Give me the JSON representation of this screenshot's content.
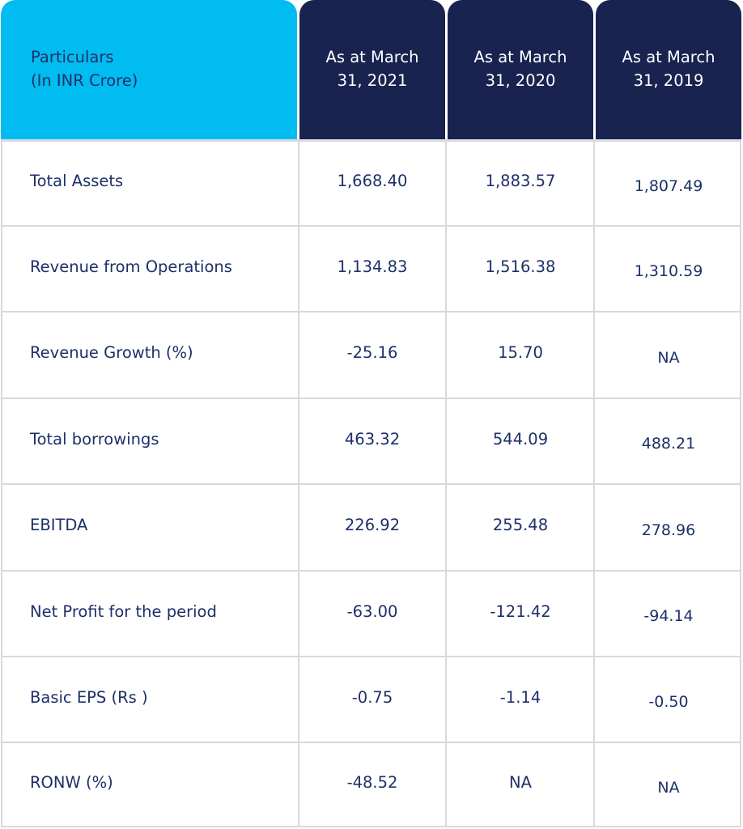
{
  "table": {
    "header": {
      "particulars": [
        "Particulars",
        "(In INR Crore)"
      ],
      "columns": [
        [
          "As at March",
          "31, 2021"
        ],
        [
          "As at March",
          "31, 2020"
        ],
        [
          "As at March",
          "31, 2019"
        ]
      ]
    },
    "rows": [
      {
        "label": "Total Assets",
        "values": [
          "1,668.40",
          "1,883.57",
          "1,807.49"
        ]
      },
      {
        "label": "Revenue from Operations",
        "values": [
          "1,134.83",
          "1,516.38",
          "1,310.59"
        ]
      },
      {
        "label": "Revenue Growth (%)",
        "values": [
          "-25.16",
          "15.70",
          "NA"
        ]
      },
      {
        "label": "Total borrowings",
        "values": [
          "463.32",
          "544.09",
          "488.21"
        ]
      },
      {
        "label": "EBITDA",
        "values": [
          "226.92",
          "255.48",
          "278.96"
        ]
      },
      {
        "label": "Net Profit for the period",
        "values": [
          "-63.00",
          "-121.42",
          "-94.14"
        ]
      },
      {
        "label": "Basic EPS (Rs )",
        "values": [
          "-0.75",
          "-1.14",
          "-0.50"
        ]
      },
      {
        "label": "RONW (%)",
        "values": [
          "-48.52",
          "NA",
          "NA"
        ]
      }
    ]
  },
  "colors": {
    "particulars_header_bg": "#00bcf0",
    "year_header_bg": "#18234f",
    "text": "#1d3068",
    "grid": "#d8d8de"
  }
}
